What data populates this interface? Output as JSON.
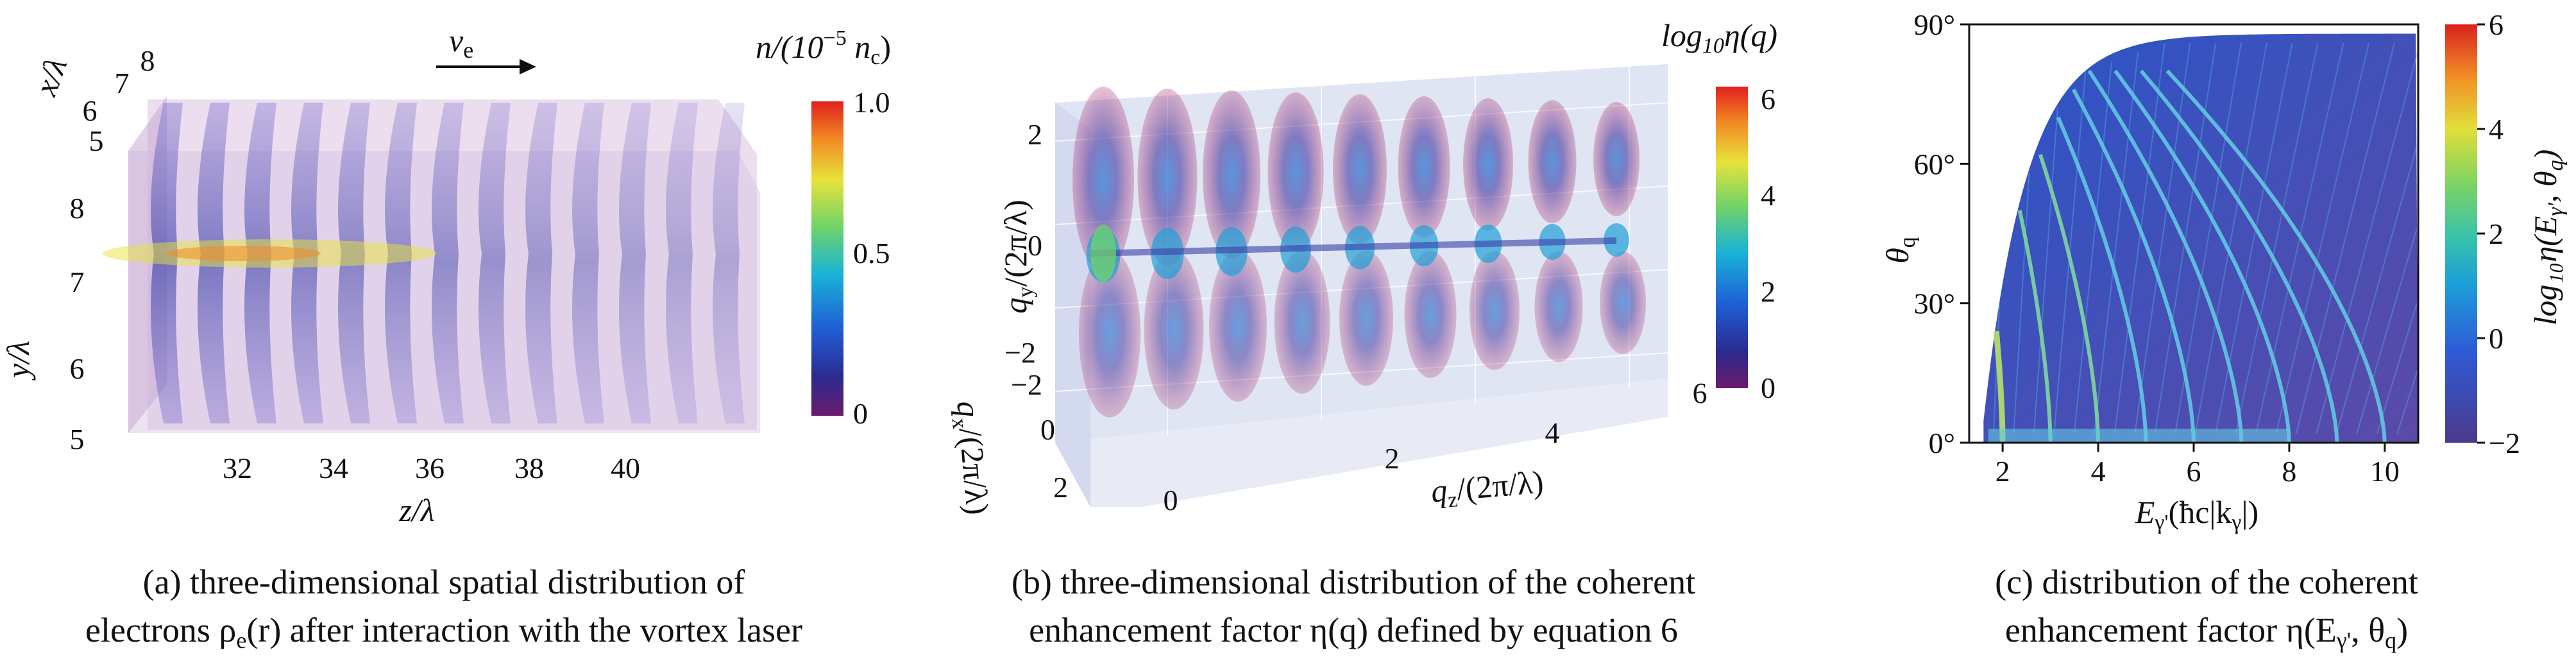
{
  "chart_data": [
    {
      "type": "heatmap",
      "panel": "a",
      "title": "three-dimensional spatial distribution of electrons",
      "velocity_label": "v",
      "velocity_sub": "e",
      "xlabel": "z/λ",
      "ylabel": "y/λ",
      "zlabel": "x/λ",
      "x_ticks": [
        "32",
        "34",
        "36",
        "38",
        "40"
      ],
      "y_ticks": [
        "5",
        "6",
        "7",
        "8"
      ],
      "z_ticks": [
        "5",
        "6",
        "7",
        "8"
      ],
      "colorbar": {
        "label_main": "n/(10",
        "label_exp": "−5",
        "label_end": " n",
        "label_sub": "c",
        "label_close": ")",
        "ticks": [
          "1.0",
          "0.5",
          "0"
        ],
        "range": [
          0,
          1.0
        ]
      },
      "n_slices": 13,
      "caption_lines": [
        "(a) three-dimensional spatial distribution of",
        "electrons ρ",
        "e",
        "(r) after interaction with the vortex laser"
      ]
    },
    {
      "type": "heatmap",
      "panel": "b",
      "title": "three-dimensional distribution of the coherent enhancement factor",
      "xlabel": "q",
      "xlabel_sub": "z",
      "xlabel_rest": "/(2π/λ)",
      "ylabel": "q",
      "ylabel_sub": "y",
      "ylabel_rest": "/(2π/λ)",
      "zlabel": "q",
      "zlabel_sub": "x",
      "zlabel_rest": "/(2π/λ)",
      "x_ticks": [
        "0",
        "2",
        "4",
        "6"
      ],
      "y_ticks": [
        "2",
        "0",
        "−2"
      ],
      "z_ticks": [
        "−2",
        "0",
        "2"
      ],
      "colorbar": {
        "label_pre": "log",
        "label_sub": "10",
        "label_post": "η(q)",
        "ticks": [
          "6",
          "4",
          "2",
          "0"
        ],
        "range": [
          0,
          6
        ]
      },
      "n_lobes": 9,
      "caption_line1": "(b) three-dimensional distribution of the coherent",
      "caption_line2": "enhancement factor η(q) defined by equation 6"
    },
    {
      "type": "heatmap",
      "panel": "c",
      "xlabel_pre": "E",
      "xlabel_sub": "γ'",
      "xlabel_post": "(ħc|k",
      "xlabel_sub2": "γ",
      "xlabel_end": "|)",
      "ylabel": "θ",
      "ylabel_sub": "q",
      "x_range": [
        1.3,
        10.7
      ],
      "y_range": [
        0,
        90
      ],
      "x_ticks": [
        2,
        4,
        6,
        8,
        10
      ],
      "x_tick_labels": [
        "2",
        "4",
        "6",
        "8",
        "10"
      ],
      "y_ticks": [
        0,
        30,
        60,
        90
      ],
      "y_tick_labels": [
        "0°",
        "30°",
        "60°",
        "90°"
      ],
      "harmonic_lines_E": [
        2,
        3,
        4,
        5,
        6,
        7,
        8,
        9,
        10
      ],
      "colorbar": {
        "label": "log₁₀η(E",
        "label_sub": "γ'",
        "label_end": ", θ",
        "label_sub2": "q",
        "label_close": ")",
        "ticks": [
          "6",
          "4",
          "2",
          "0",
          "−2"
        ],
        "range": [
          -2,
          6
        ]
      },
      "caption_line1": "(c) distribution of the coherent",
      "caption_line2": "enhancement factor η(E",
      "caption_sub1": "γ'",
      "caption_mid": ", θ",
      "caption_sub2": "q",
      "caption_end": ")"
    }
  ]
}
